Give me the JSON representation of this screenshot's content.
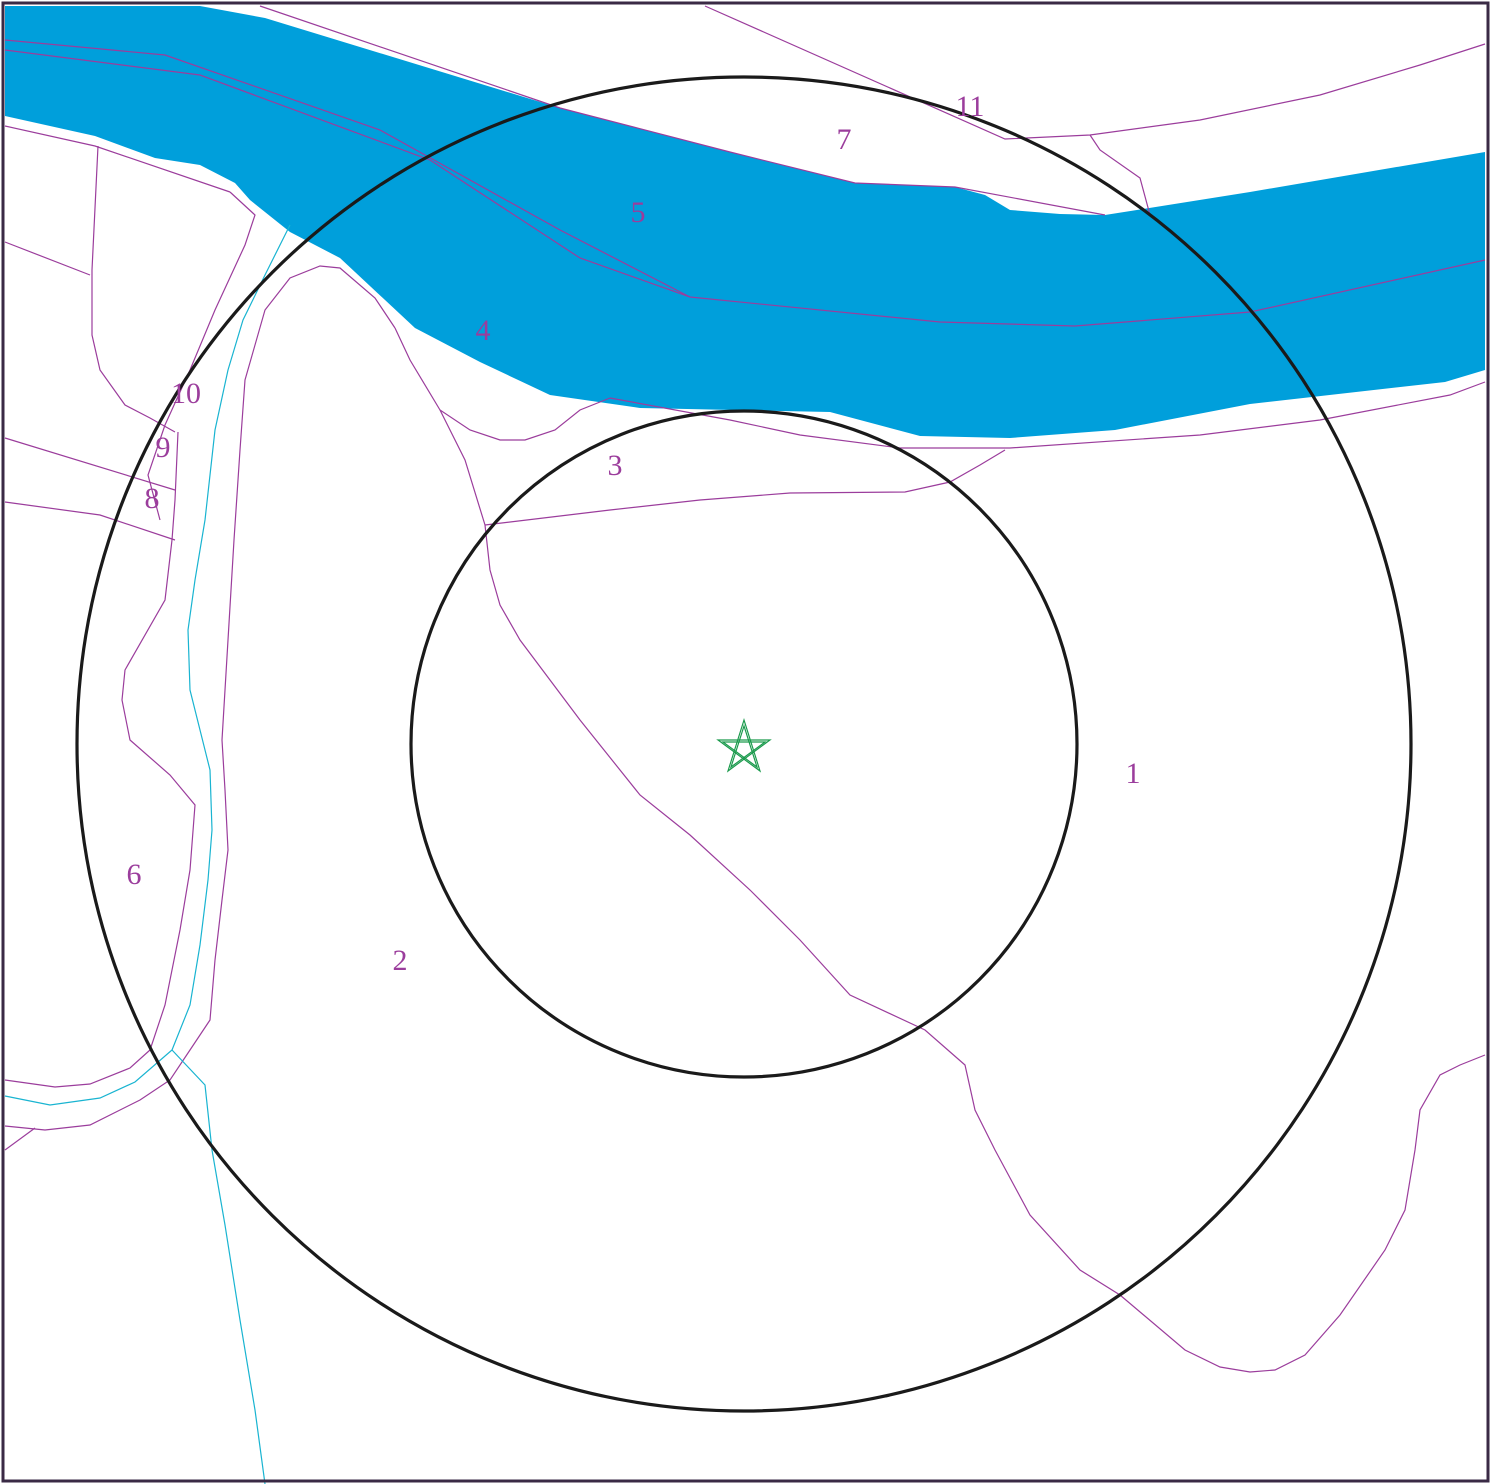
{
  "colors": {
    "frame": "#3a2a45",
    "river": "#009fdb",
    "parcel_line": "#9b3d9c",
    "label": "#9b3d9c",
    "stream": "#19b4d1",
    "ring": "#1a1a1a",
    "marker": "#1a9a4c"
  },
  "map": {
    "center_marker_icon": "star-icon",
    "buffer_rings": [
      "inner-buffer-ring",
      "outer-buffer-ring"
    ]
  },
  "parcels": [
    {
      "id": "1",
      "label": "1"
    },
    {
      "id": "2",
      "label": "2"
    },
    {
      "id": "3",
      "label": "3"
    },
    {
      "id": "4",
      "label": "4"
    },
    {
      "id": "5",
      "label": "5"
    },
    {
      "id": "6",
      "label": "6"
    },
    {
      "id": "7",
      "label": "7"
    },
    {
      "id": "8",
      "label": "8"
    },
    {
      "id": "9",
      "label": "9"
    },
    {
      "id": "10",
      "label": "10"
    },
    {
      "id": "11",
      "label": "11"
    }
  ]
}
